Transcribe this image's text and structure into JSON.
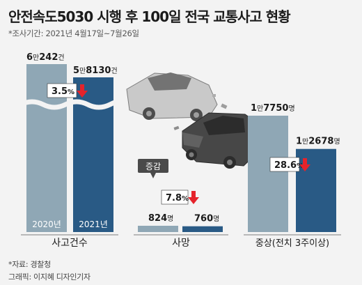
{
  "title": "안전속도5030 시행 후 100일 전국 교통사고 현황",
  "subtitle": "*조사기간: 2021년 4월17일~7월26일",
  "colors": {
    "light": "#8fa7b5",
    "dark": "#295a85",
    "red": "#e5232b",
    "badge_bg": "#ffffff"
  },
  "chart_data": {
    "type": "bar",
    "title": "안전속도5030 시행 후 100일 전국 교통사고 현황",
    "series_labels": [
      "2020년",
      "2021년"
    ],
    "groups": [
      {
        "category": "사고건수",
        "values": [
          60242,
          58130
        ],
        "value_labels": [
          {
            "man": "6",
            "man_unit": "만",
            "rest": "242",
            "unit": "건"
          },
          {
            "man": "5",
            "man_unit": "만",
            "rest": "8130",
            "unit": "건"
          }
        ],
        "change": {
          "value": "3.5",
          "unit": "%",
          "direction": "down"
        }
      },
      {
        "category": "사망",
        "values": [
          824,
          760
        ],
        "value_labels": [
          {
            "man": "",
            "man_unit": "",
            "rest": "824",
            "unit": "명"
          },
          {
            "man": "",
            "man_unit": "",
            "rest": "760",
            "unit": "명"
          }
        ],
        "change_label": "증감",
        "change": {
          "value": "7.8",
          "unit": "%",
          "direction": "down"
        }
      },
      {
        "category": "중상(전치 3주이상)",
        "values": [
          17750,
          12678
        ],
        "value_labels": [
          {
            "man": "1",
            "man_unit": "만",
            "rest": "7750",
            "unit": "명"
          },
          {
            "man": "1",
            "man_unit": "만",
            "rest": "2678",
            "unit": "명"
          }
        ],
        "change": {
          "value": "28.6",
          "unit": "%",
          "direction": "down"
        }
      }
    ],
    "axis_break": true
  },
  "footer": {
    "source": "*자료: 경찰청",
    "credit": "그래픽: 이지혜 디자인기자"
  },
  "illustration": {
    "name": "car-crash-illustration"
  }
}
